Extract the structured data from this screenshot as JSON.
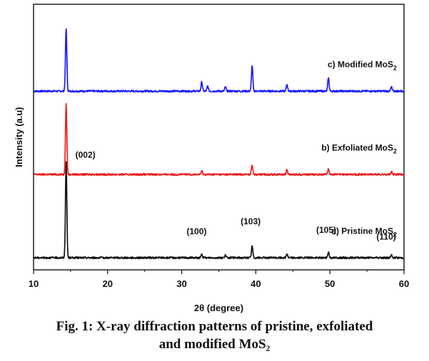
{
  "caption": {
    "line1": "Fig. 1: X-ray diffraction patterns of pristine, exfoliated",
    "line2": "and modified MoS₂"
  },
  "chart_data": {
    "type": "line",
    "xlabel": "2θ (degree)",
    "ylabel": "Intensity (a.u)",
    "xlim": [
      10,
      60
    ],
    "x_ticks": [
      10,
      20,
      30,
      40,
      50,
      60
    ],
    "y_tick_labels": false,
    "series": [
      {
        "name": "c) Modified MoS₂",
        "color": "#1a1aff",
        "baseline": 2.0,
        "peaks": [
          {
            "x": 14.4,
            "h": 0.75
          },
          {
            "x": 32.7,
            "h": 0.11
          },
          {
            "x": 33.5,
            "h": 0.06
          },
          {
            "x": 35.9,
            "h": 0.05
          },
          {
            "x": 39.5,
            "h": 0.31
          },
          {
            "x": 44.2,
            "h": 0.08
          },
          {
            "x": 49.8,
            "h": 0.16
          },
          {
            "x": 58.3,
            "h": 0.05
          }
        ]
      },
      {
        "name": "b) Exfoliated MoS₂",
        "color": "#ee1c1c",
        "baseline": 1.0,
        "peaks": [
          {
            "x": 14.4,
            "h": 0.85
          },
          {
            "x": 32.7,
            "h": 0.04
          },
          {
            "x": 39.5,
            "h": 0.12
          },
          {
            "x": 44.2,
            "h": 0.06
          },
          {
            "x": 49.8,
            "h": 0.07
          },
          {
            "x": 58.3,
            "h": 0.03
          }
        ]
      },
      {
        "name": "a) Pristine MoS₂",
        "color": "#111111",
        "baseline": 0.0,
        "peaks": [
          {
            "x": 14.4,
            "h": 1.15
          },
          {
            "x": 32.7,
            "h": 0.04
          },
          {
            "x": 35.9,
            "h": 0.03
          },
          {
            "x": 39.5,
            "h": 0.14
          },
          {
            "x": 44.2,
            "h": 0.05
          },
          {
            "x": 49.8,
            "h": 0.07
          },
          {
            "x": 58.3,
            "h": 0.03
          }
        ]
      }
    ],
    "annotations": [
      {
        "text": "(002)",
        "x": 17.0,
        "y": 1.2
      },
      {
        "text": "(100)",
        "x": 32.0,
        "y": 0.28
      },
      {
        "text": "(103)",
        "x": 39.3,
        "y": 0.4
      },
      {
        "text": "(105)",
        "x": 49.5,
        "y": 0.3
      },
      {
        "text": "(110)",
        "x": 57.6,
        "y": 0.22
      }
    ]
  }
}
